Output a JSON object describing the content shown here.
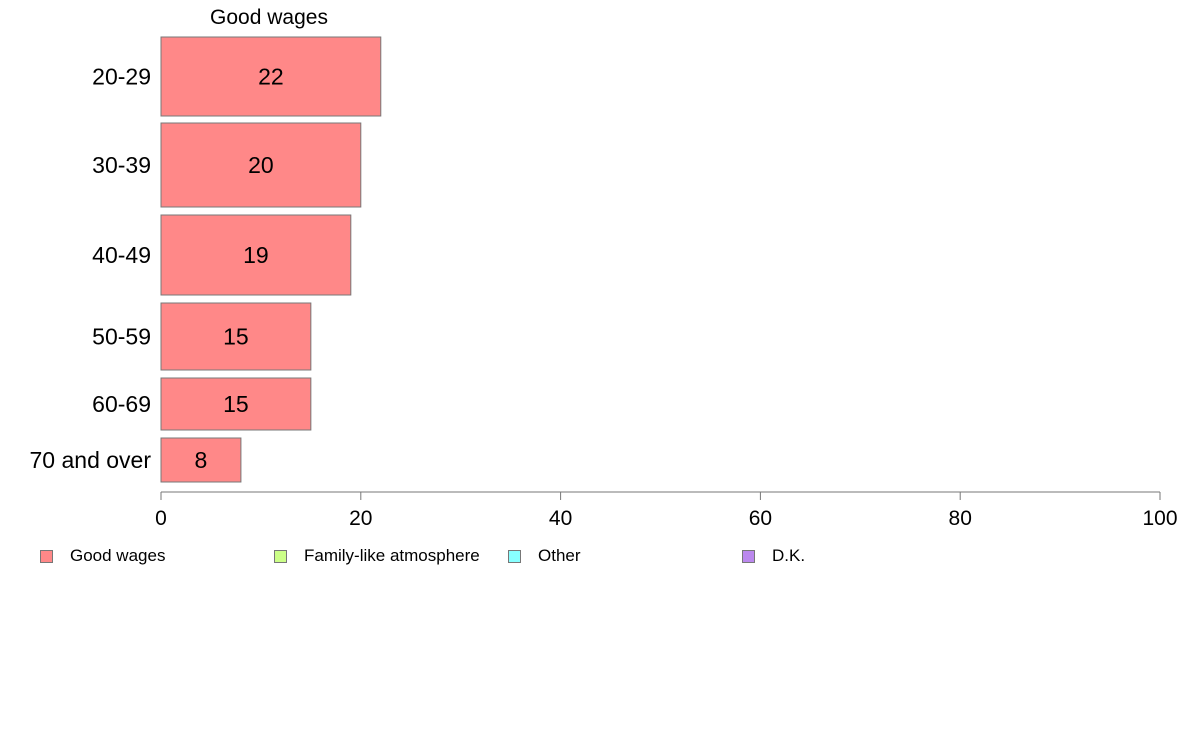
{
  "chart_data": {
    "type": "bar",
    "orientation": "horizontal",
    "title": "Good wages",
    "categories": [
      "20-29",
      "30-39",
      "40-49",
      "50-59",
      "60-69",
      "70 and over"
    ],
    "series": [
      {
        "name": "Good wages",
        "values": [
          22,
          20,
          19,
          15,
          15,
          8
        ],
        "color": "#ff8888"
      }
    ],
    "data_labels": [
      "22",
      "20",
      "19",
      "15",
      "15",
      "8"
    ],
    "xlim": [
      0,
      100
    ],
    "xticks": [
      0,
      20,
      40,
      60,
      80,
      100
    ],
    "xtick_labels": [
      "0",
      "20",
      "40",
      "60",
      "80",
      "100"
    ],
    "grid": false,
    "legend_position": "bottom",
    "legend": [
      {
        "label": "Good wages",
        "color": "#ff8888"
      },
      {
        "label": "Family-like atmosphere",
        "color": "#ccff88"
      },
      {
        "label": "Other",
        "color": "#88ffff"
      },
      {
        "label": "D.K.",
        "color": "#bb88ee"
      }
    ]
  }
}
